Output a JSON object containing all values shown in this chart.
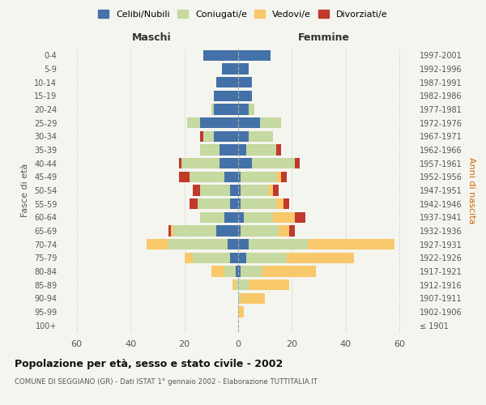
{
  "age_groups": [
    "100+",
    "95-99",
    "90-94",
    "85-89",
    "80-84",
    "75-79",
    "70-74",
    "65-69",
    "60-64",
    "55-59",
    "50-54",
    "45-49",
    "40-44",
    "35-39",
    "30-34",
    "25-29",
    "20-24",
    "15-19",
    "10-14",
    "5-9",
    "0-4"
  ],
  "birth_years": [
    "≤ 1901",
    "1902-1906",
    "1907-1911",
    "1912-1916",
    "1917-1921",
    "1922-1926",
    "1927-1931",
    "1932-1936",
    "1937-1941",
    "1942-1946",
    "1947-1951",
    "1952-1956",
    "1957-1961",
    "1962-1966",
    "1967-1971",
    "1972-1976",
    "1977-1981",
    "1982-1986",
    "1987-1991",
    "1992-1996",
    "1997-2001"
  ],
  "maschi": {
    "celibi": [
      0,
      0,
      0,
      0,
      1,
      3,
      4,
      8,
      5,
      3,
      3,
      5,
      7,
      7,
      9,
      14,
      9,
      9,
      8,
      6,
      13
    ],
    "coniugati": [
      0,
      0,
      0,
      1,
      4,
      14,
      22,
      16,
      9,
      12,
      11,
      13,
      14,
      7,
      4,
      5,
      1,
      0,
      0,
      0,
      0
    ],
    "vedovi": [
      0,
      0,
      0,
      1,
      5,
      3,
      8,
      1,
      0,
      0,
      0,
      0,
      0,
      0,
      0,
      0,
      0,
      0,
      0,
      0,
      0
    ],
    "divorziati": [
      0,
      0,
      0,
      0,
      0,
      0,
      0,
      1,
      0,
      3,
      3,
      4,
      1,
      0,
      1,
      0,
      0,
      0,
      0,
      0,
      0
    ]
  },
  "femmine": {
    "nubili": [
      0,
      0,
      0,
      0,
      1,
      3,
      4,
      1,
      2,
      1,
      1,
      1,
      5,
      3,
      4,
      8,
      4,
      5,
      5,
      4,
      12
    ],
    "coniugate": [
      0,
      0,
      1,
      4,
      8,
      15,
      22,
      14,
      11,
      13,
      10,
      13,
      16,
      11,
      9,
      8,
      2,
      0,
      0,
      0,
      0
    ],
    "vedove": [
      0,
      2,
      9,
      15,
      20,
      25,
      32,
      4,
      8,
      3,
      2,
      2,
      0,
      0,
      0,
      0,
      0,
      0,
      0,
      0,
      0
    ],
    "divorziate": [
      0,
      0,
      0,
      0,
      0,
      0,
      0,
      2,
      4,
      2,
      2,
      2,
      2,
      2,
      0,
      0,
      0,
      0,
      0,
      0,
      0
    ]
  },
  "colors": {
    "celibi": "#4472a8",
    "coniugati": "#c5d9a0",
    "vedovi": "#f9c86a",
    "divorziati": "#c0392b"
  },
  "xlim": 65,
  "title": "Popolazione per età, sesso e stato civile - 2002",
  "subtitle": "COMUNE DI SEGGIANO (GR) - Dati ISTAT 1° gennaio 2002 - Elaborazione TUTTITALIA.IT",
  "ylabel_left": "Fasce di età",
  "ylabel_right": "Anni di nascita",
  "xlabel_maschi": "Maschi",
  "xlabel_femmine": "Femmine",
  "legend_labels": [
    "Celibi/Nubili",
    "Coniugati/e",
    "Vedovi/e",
    "Divorziati/e"
  ],
  "bar_height": 0.8,
  "background_color": "#f5f5f0"
}
